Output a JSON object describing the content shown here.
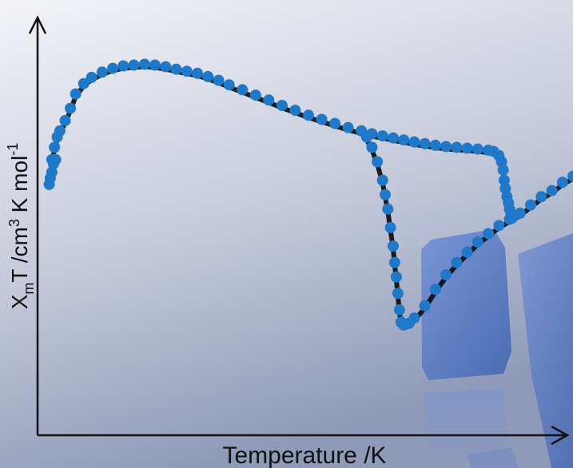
{
  "chart_data": {
    "type": "scatter",
    "title": "",
    "xlabel": "Temperature /K",
    "ylabel": {
      "X": "X",
      "m": "m",
      "T": "T /cm",
      "sup3": "3",
      "K_mol": " K mol",
      "sup_neg1": "-1"
    },
    "xlim": [
      0,
      100
    ],
    "ylim": [
      0,
      100
    ],
    "grid": false,
    "legend": "none",
    "ticks": "none",
    "colors": {
      "points": "#1f78c8",
      "outline": "#0a0a0a",
      "background_top": "#f3f4f8",
      "background_bottom": "#8f9ab8",
      "crystal": "#5b7fc8"
    },
    "series": [
      {
        "branch": "upper-cooling",
        "x": [
          1.5,
          2.0,
          2.5,
          3.0,
          4.0,
          5.0,
          6.0,
          7.5,
          9.0,
          11.0,
          13.0,
          15.0,
          17.0,
          19.0,
          21.0,
          23.0,
          25.0,
          27.0,
          29.0,
          31.0,
          33.0,
          35.0,
          37.5,
          40.0,
          42.5,
          45.0,
          47.5,
          50.0,
          52.5,
          55.0,
          57.5,
          60.0,
          62.0,
          64.0,
          66.0,
          68.0,
          70.0,
          72.0,
          74.0,
          76.0,
          78.0,
          80.0,
          82.0,
          84.0,
          85.0,
          86.0,
          86.5
        ],
        "y": [
          67.0,
          70.0,
          72.5,
          74.0,
          76.5,
          79.5,
          83.0,
          85.5,
          87.0,
          88.3,
          89.2,
          89.8,
          90.0,
          90.2,
          90.0,
          89.6,
          89.0,
          88.5,
          88.0,
          87.2,
          86.3,
          85.2,
          84.0,
          82.7,
          81.5,
          80.2,
          79.0,
          77.8,
          76.8,
          75.8,
          74.8,
          74.0,
          73.3,
          72.8,
          72.3,
          71.8,
          71.3,
          70.9,
          70.5,
          70.2,
          70.0,
          69.8,
          69.6,
          69.3,
          69.0,
          68.0,
          66.5
        ]
      },
      {
        "branch": "drop-60K",
        "x": [
          60.0,
          61.0,
          62.0,
          63.0,
          64.0,
          64.5,
          65.0,
          65.5,
          66.0,
          66.3,
          66.6,
          66.9,
          67.2,
          67.5
        ],
        "y": [
          74.0,
          72.5,
          70.0,
          66.5,
          62.0,
          58.5,
          55.0,
          50.5,
          46.0,
          42.0,
          38.5,
          34.5,
          30.5,
          27.5
        ]
      },
      {
        "branch": "return-rising",
        "x": [
          67.5,
          68.0,
          69.0,
          70.0,
          72.0,
          74.0,
          76.0,
          78.0,
          80.0,
          82.0,
          84.0,
          86.0,
          88.0,
          90.0,
          92.0,
          94.0,
          96.0,
          98.0,
          100.0
        ],
        "y": [
          27.5,
          26.8,
          27.2,
          28.5,
          31.5,
          35.5,
          39.0,
          42.0,
          44.5,
          47.0,
          49.0,
          51.0,
          52.5,
          54.0,
          56.0,
          58.0,
          59.5,
          61.5,
          63.0
        ]
      },
      {
        "branch": "drop-86K",
        "x": [
          86.5,
          86.8,
          87.0,
          87.2,
          87.5,
          87.8,
          88.0,
          88.3,
          88.5
        ],
        "y": [
          66.5,
          64.5,
          62.0,
          60.0,
          58.0,
          56.5,
          55.0,
          53.8,
          52.8
        ]
      },
      {
        "branch": "low-T-start",
        "x": [
          1.0,
          1.2,
          1.5,
          1.8,
          2.2
        ],
        "y": [
          61.0,
          62.5,
          64.0,
          66.0,
          67.0
        ]
      }
    ]
  }
}
